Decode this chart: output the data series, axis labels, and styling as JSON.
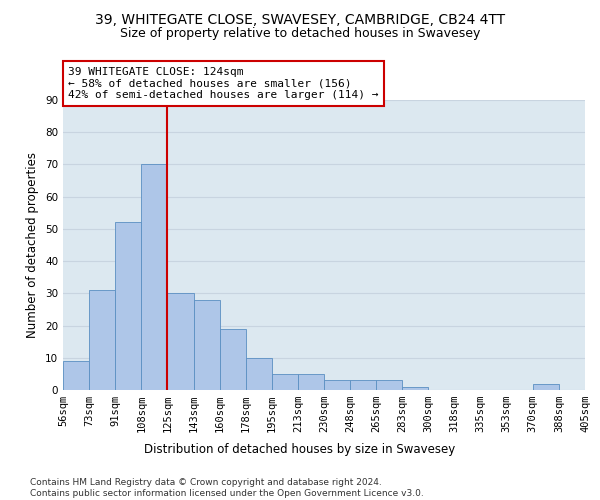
{
  "title": "39, WHITEGATE CLOSE, SWAVESEY, CAMBRIDGE, CB24 4TT",
  "subtitle": "Size of property relative to detached houses in Swavesey",
  "xlabel": "Distribution of detached houses by size in Swavesey",
  "ylabel": "Number of detached properties",
  "bin_labels": [
    "56sqm",
    "73sqm",
    "91sqm",
    "108sqm",
    "125sqm",
    "143sqm",
    "160sqm",
    "178sqm",
    "195sqm",
    "213sqm",
    "230sqm",
    "248sqm",
    "265sqm",
    "283sqm",
    "300sqm",
    "318sqm",
    "335sqm",
    "353sqm",
    "370sqm",
    "388sqm",
    "405sqm"
  ],
  "bar_values": [
    9,
    31,
    52,
    70,
    30,
    28,
    19,
    10,
    5,
    5,
    3,
    3,
    3,
    1,
    0,
    0,
    0,
    0,
    2,
    0
  ],
  "bar_color": "#aec6e8",
  "bar_edge_color": "#5a8fc2",
  "vline_x_index": 4,
  "vline_color": "#cc0000",
  "annotation_line1": "39 WHITEGATE CLOSE: 124sqm",
  "annotation_line2": "← 58% of detached houses are smaller (156)",
  "annotation_line3": "42% of semi-detached houses are larger (114) →",
  "annotation_box_color": "#ffffff",
  "annotation_box_edge": "#cc0000",
  "ylim": [
    0,
    90
  ],
  "yticks": [
    0,
    10,
    20,
    30,
    40,
    50,
    60,
    70,
    80,
    90
  ],
  "grid_color": "#c8d4e0",
  "bg_color": "#dce8f0",
  "footer": "Contains HM Land Registry data © Crown copyright and database right 2024.\nContains public sector information licensed under the Open Government Licence v3.0.",
  "title_fontsize": 10,
  "subtitle_fontsize": 9,
  "axis_label_fontsize": 8.5,
  "tick_fontsize": 7.5,
  "annotation_fontsize": 8,
  "footer_fontsize": 6.5
}
